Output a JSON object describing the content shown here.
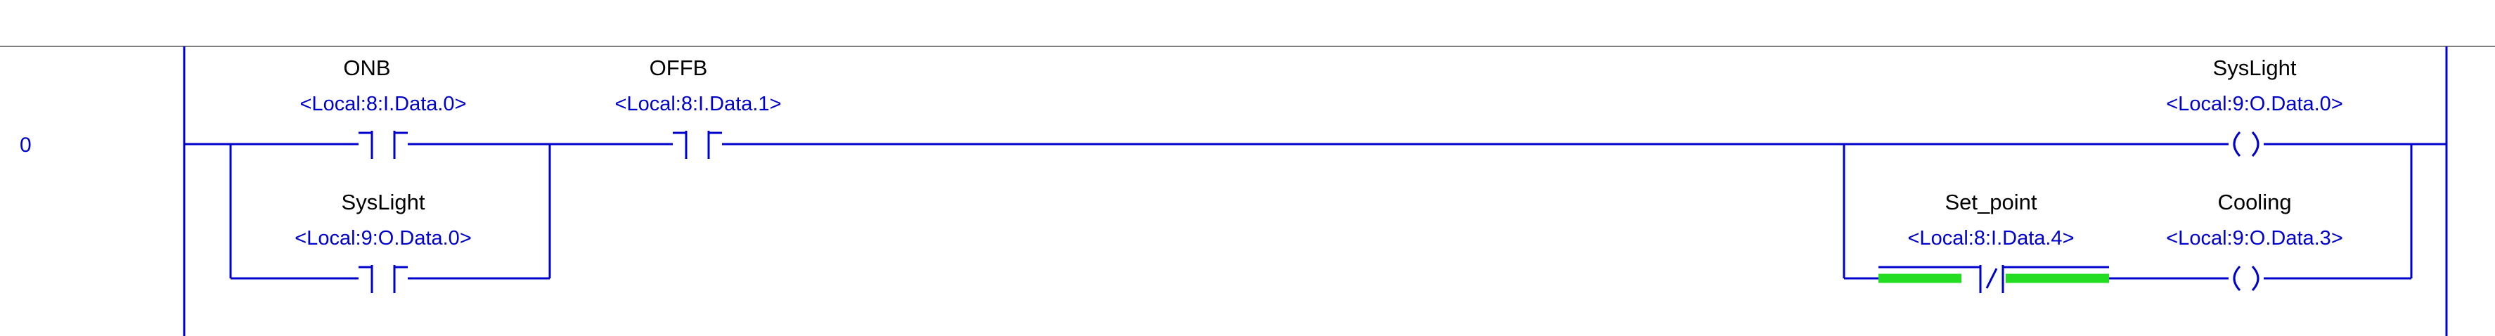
{
  "rung": {
    "number": "0"
  },
  "instructions": {
    "onb": {
      "tag": "ONB",
      "address": "<Local:8:I.Data.0>",
      "type": "XIC"
    },
    "offb": {
      "tag": "OFFB",
      "address": "<Local:8:I.Data.1>",
      "type": "XIC"
    },
    "syslight_contact": {
      "tag": "SysLight",
      "address": "<Local:9:O.Data.0>",
      "type": "XIC"
    },
    "syslight_coil": {
      "tag": "SysLight",
      "address": "<Local:9:O.Data.0>",
      "type": "OTE"
    },
    "set_point": {
      "tag": "Set_point",
      "address": "<Local:8:I.Data.4>",
      "type": "XIO",
      "energized": true
    },
    "cooling_coil": {
      "tag": "Cooling",
      "address": "<Local:9:O.Data.3>",
      "type": "OTE"
    }
  },
  "colors": {
    "wire": "#0000cc",
    "energized": "#22dd22",
    "separator": "#7f7f7f"
  }
}
